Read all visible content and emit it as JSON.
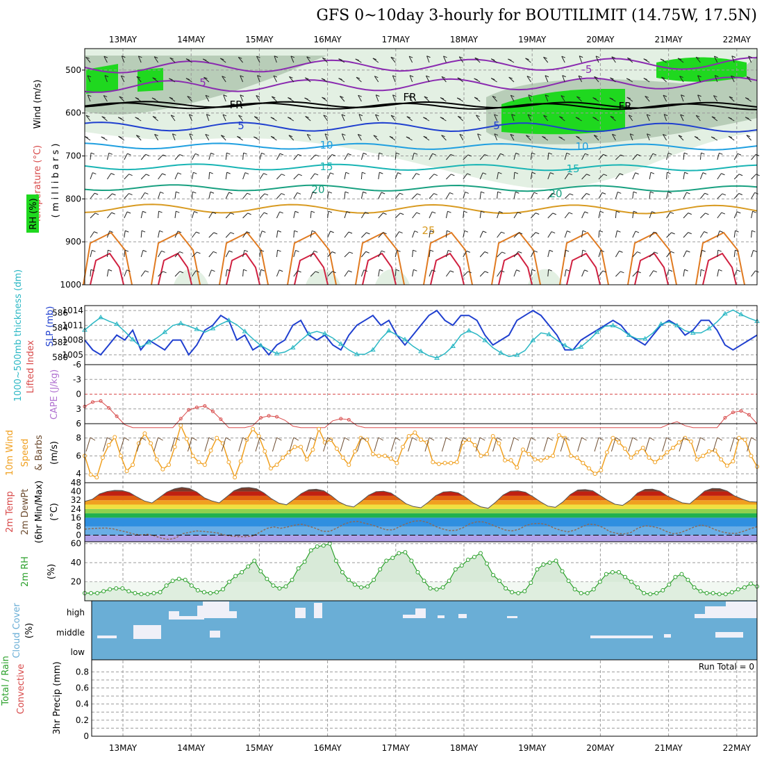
{
  "title": "GFS 0~10day 3-hourly for BOUTILIMIT (14.75W, 17.5N)",
  "dates": [
    "13MAY",
    "14MAY",
    "15MAY",
    "16MAY",
    "17MAY",
    "18MAY",
    "19MAY",
    "20MAY",
    "21MAY",
    "22MAY"
  ],
  "run_total": "Run Total = 0",
  "colors": {
    "grid": "#9a9a9a",
    "rh_light": "#e3f0e3",
    "rh_mid": "#b8cdb8",
    "rh_dark": "#7fa387",
    "rh_green": "#1fd81f",
    "slp": "#1f3fcf",
    "thick": "#2ab7c4",
    "li": "#d84a4a",
    "wind": "#f0a020",
    "rh2m": "#2aa02a",
    "cloud": "#6aaed6"
  },
  "panels": {
    "upper": {
      "labels": {
        "rh": "RH (%)",
        "temperature": "Temperature (°C)",
        "wind": "Wind (m/s)",
        "units": "( m i l l i b a r s )"
      },
      "yticks": [
        "500",
        "600",
        "700",
        "800",
        "900",
        "1000"
      ],
      "contour_labels": [
        "-5",
        "5",
        "FR",
        "FR",
        "5",
        "5",
        "10",
        "10",
        "15",
        "15",
        "20",
        "20",
        "25",
        "FR"
      ]
    },
    "slp": {
      "labels": {
        "thickness": "1000~500mb thickness (dm)",
        "slp": "SLP (mb)"
      },
      "ticks_left": [
        "586",
        "584",
        "582",
        "580"
      ],
      "ticks_right": [
        "1014",
        "1011",
        "1008",
        "1005"
      ],
      "slp_values": [
        1008,
        1006,
        1005,
        1007,
        1009,
        1008,
        1010,
        1006,
        1008,
        1007,
        1006,
        1008,
        1008,
        1005,
        1007,
        1010,
        1011,
        1013,
        1012,
        1008,
        1009,
        1006,
        1007,
        1005,
        1007,
        1008,
        1011,
        1012,
        1009,
        1008,
        1009,
        1007,
        1006,
        1009,
        1011,
        1012,
        1013,
        1011,
        1012,
        1009,
        1007,
        1009,
        1011,
        1013,
        1014,
        1012,
        1011,
        1013,
        1013,
        1012,
        1009,
        1007,
        1008,
        1009,
        1012,
        1013,
        1014,
        1013,
        1011,
        1009,
        1006,
        1006,
        1008,
        1009,
        1010,
        1011,
        1012,
        1011,
        1009,
        1008,
        1007,
        1009,
        1011,
        1012,
        1011,
        1009,
        1010,
        1012,
        1012,
        1010,
        1007,
        1006,
        1007,
        1008,
        1009
      ],
      "thick_values": [
        583.7,
        584.6,
        585.4,
        584.9,
        584.5,
        583.5,
        582.4,
        581.4,
        582.0,
        582.6,
        583.4,
        584.3,
        584.6,
        584.2,
        583.8,
        583.4,
        583.9,
        584.5,
        585.0,
        584.4,
        583.5,
        582.5,
        581.6,
        581.0,
        580.5,
        580.7,
        581.3,
        582.3,
        583.2,
        583.5,
        583.2,
        582.6,
        581.8,
        581.0,
        580.4,
        580.4,
        581.0,
        582.5,
        583.6,
        583.0,
        582.4,
        581.5,
        580.8,
        580.2,
        579.9,
        580.5,
        581.5,
        583.0,
        583.6,
        583.1,
        582.3,
        581.3,
        580.6,
        580.1,
        580.3,
        580.9,
        582.3,
        583.3,
        583.1,
        582.3,
        581.6,
        581.0,
        581.4,
        582.3,
        583.4,
        584.2,
        584.3,
        583.8,
        583.0,
        582.5,
        582.5,
        583.3,
        584.5,
        584.8,
        584.3,
        583.6,
        583.3,
        583.3,
        583.9,
        584.8,
        585.9,
        586.4,
        585.8,
        585.3,
        584.9
      ]
    },
    "cape": {
      "labels": {
        "li": "Lifted Index",
        "cape": "CAPE (J/kg)"
      },
      "ticks": [
        "-6",
        "-3",
        "0",
        "3",
        "6"
      ],
      "li_values": [
        2.5,
        1.6,
        1.4,
        2.8,
        4.5,
        6.2,
        7.5,
        8.0,
        8.0,
        8.0,
        8.0,
        6.8,
        5.0,
        3.2,
        2.7,
        2.4,
        3.5,
        5.1,
        7.0,
        8.0,
        8.0,
        6.4,
        4.8,
        4.4,
        4.6,
        5.3,
        6.5,
        8.0,
        8.0,
        8.0,
        7.0,
        5.4,
        5.0,
        5.2,
        6.4,
        7.5,
        8.0,
        8.0,
        8.0,
        8.0,
        8.0,
        8.0,
        8.0,
        8.0,
        8.0,
        8.0,
        8.0,
        8.0,
        8.0,
        8.0,
        8.0,
        8.0,
        8.0,
        8.0,
        8.0,
        8.0,
        8.0,
        8.0,
        8.0,
        8.0,
        8.0,
        8.0,
        8.0,
        8.0,
        8.0,
        8.0,
        8.0,
        8.0,
        8.0,
        8.0,
        8.0,
        8.0,
        7.2,
        6.1,
        5.6,
        6.4,
        7.4,
        8.0,
        8.0,
        7.0,
        4.8,
        3.7,
        3.4,
        4.2,
        6.0
      ]
    },
    "wind10": {
      "labels": {
        "title": "10m Wind",
        "speed": "Speed",
        "barbs": "& Barbs",
        "units": "(m/s)"
      },
      "ticks": [
        "8",
        "6",
        "4"
      ],
      "values": [
        6.0,
        3.9,
        3.6,
        5.8,
        7.2,
        8.1,
        6.0,
        4.3,
        5.0,
        7.4,
        8.5,
        7.4,
        5.6,
        4.5,
        5.0,
        7.0,
        9.4,
        7.9,
        6.0,
        5.3,
        5.0,
        6.6,
        8.0,
        7.4,
        5.3,
        3.6,
        5.4,
        7.8,
        9.0,
        8.2,
        6.5,
        4.6,
        5.0,
        5.8,
        6.4,
        7.0,
        7.0,
        5.6,
        6.7,
        9.0,
        7.5,
        7.8,
        6.8,
        5.8,
        5.0,
        6.5,
        8.0,
        7.8,
        6.2,
        6.0,
        6.0,
        5.7,
        5.2,
        7.0,
        8.2,
        8.6,
        7.8,
        7.5,
        5.3,
        5.1,
        5.2,
        5.2,
        5.3,
        7.5,
        7.8,
        7.2,
        6.0,
        6.2,
        8.2,
        7.4,
        5.5,
        5.5,
        4.7,
        6.7,
        6.2,
        5.6,
        5.5,
        5.8,
        6.0,
        8.3,
        8.0,
        6.0,
        5.8,
        5.2,
        4.6,
        4.0,
        4.4,
        6.4,
        8.0,
        7.5,
        6.8,
        5.8,
        6.4,
        6.9,
        5.8,
        5.3,
        5.8,
        6.4,
        6.9,
        7.5,
        8.0,
        7.6,
        5.6,
        6.0,
        6.5,
        6.6,
        5.6,
        4.9,
        5.4,
        8.0,
        7.8,
        6.0,
        4.8
      ]
    },
    "temp2m": {
      "labels": {
        "temp": "2m Temp",
        "dewpt": "2m DewPt",
        "minmax": "(6hr Min/Max)",
        "units": "(°C)"
      },
      "ticks": [
        "48",
        "40",
        "32",
        "24",
        "16",
        "8",
        "0"
      ],
      "temp_values": [
        30.9,
        32.8,
        37.8,
        40.0,
        41.0,
        40.8,
        39.0,
        35.0,
        31.3,
        29.5,
        34.5,
        39.5,
        42.4,
        43.7,
        42.8,
        39.5,
        34.2,
        31.4,
        29.6,
        35.1,
        40.7,
        43.3,
        43.6,
        42.5,
        38.6,
        33.3,
        29.3,
        27.8,
        32.8,
        38.1,
        41.6,
        42.0,
        40.6,
        36.2,
        30.6,
        27.3,
        25.8,
        31.0,
        36.5,
        39.8,
        40.2,
        38.6,
        33.9,
        28.8,
        26.2,
        25.1,
        30.3,
        36.2,
        39.5,
        40.0,
        38.7,
        34.6,
        29.5,
        26.0,
        24.6,
        30.2,
        36.7,
        40.3,
        40.6,
        39.3,
        35.2,
        30.6,
        26.6,
        25.5,
        30.4,
        37.2,
        41.3,
        41.7,
        40.6,
        36.3,
        31.9,
        28.3,
        27.3,
        32.0,
        38.6,
        41.9,
        42.1,
        40.3,
        35.8,
        32.6,
        29.6,
        28.8,
        34.6,
        40.4,
        42.7,
        42.6,
        40.4,
        35.9,
        33.1,
        30.7,
        30.3
      ],
      "dew_values": [
        5.5,
        6.1,
        6.4,
        6.5,
        5.9,
        4.3,
        2.9,
        1.0,
        0.2,
        0.8,
        -0.7,
        -2.8,
        -3.9,
        -2.6,
        1.4,
        2.7,
        3.9,
        3.4,
        2.8,
        2.0,
        0.1,
        -0.9,
        -1.3,
        -1.3,
        -0.8,
        2.7,
        6.2,
        7.6,
        6.3,
        7.6,
        9.2,
        10.0,
        8.2,
        6.2,
        3.5,
        3.5,
        6.5,
        10.1,
        12.2,
        12.7,
        10.9,
        9.4,
        7.2,
        5.0,
        4.8,
        8.0,
        10.8,
        12.8,
        13.2,
        11.6,
        8.2,
        5.9,
        4.3,
        4.4,
        6.8,
        10.5,
        12.3,
        12.1,
        9.9,
        7.3,
        4.8,
        3.9,
        5.4,
        8.9,
        10.6,
        10.8,
        9.6,
        6.6,
        4.4,
        3.1,
        4.7,
        7.7,
        10.2,
        9.5,
        7.1,
        3.2,
        1.6,
        1.1,
        2.5,
        6.5,
        8.7,
        8.0,
        6.5,
        3.6,
        1.3,
        2.2,
        4.7,
        7.5,
        9.4,
        8.0,
        5.1,
        3.0,
        1.8,
        1.6,
        3.4,
        5.8,
        7.7
      ]
    },
    "rh2m": {
      "labels": {
        "title": "2m RH",
        "units": "(%)"
      },
      "ticks": [
        "60",
        "40",
        "20"
      ],
      "values": [
        8,
        8,
        8,
        10,
        12,
        13,
        13,
        10,
        8,
        7,
        7,
        8,
        9,
        16,
        21,
        23,
        22,
        16,
        11,
        9,
        8,
        9,
        12,
        20,
        26,
        30,
        36,
        42,
        31,
        23,
        16,
        13,
        15,
        22,
        34,
        41,
        53,
        57,
        58,
        60,
        42,
        30,
        22,
        17,
        14,
        15,
        22,
        33,
        42,
        45,
        50,
        51,
        42,
        30,
        21,
        13,
        12,
        14,
        21,
        33,
        37,
        43,
        46,
        50,
        39,
        27,
        21,
        13,
        9,
        8,
        10,
        19,
        33,
        38,
        40,
        42,
        31,
        21,
        12,
        8,
        8,
        12,
        20,
        28,
        30,
        30,
        25,
        20,
        14,
        8,
        7,
        8,
        11,
        17,
        25,
        28,
        22,
        14,
        10,
        8,
        8,
        7,
        7,
        9,
        12,
        14,
        18,
        15
      ],
      "points_every": 1
    },
    "cloud": {
      "labels": {
        "title": "Cloud Cover",
        "units": "(%)",
        "high": "high",
        "middle": "middle",
        "low": "low"
      }
    },
    "precip": {
      "labels": {
        "title": "Total / Rain",
        "convective": "Convective",
        "units": "3hr Precip (mm)"
      },
      "ticks": [
        "0.8",
        "0.6",
        "0.4",
        "0.2",
        "0"
      ],
      "values": [
        0,
        0,
        0,
        0,
        0,
        0,
        0,
        0,
        0,
        0
      ]
    }
  }
}
